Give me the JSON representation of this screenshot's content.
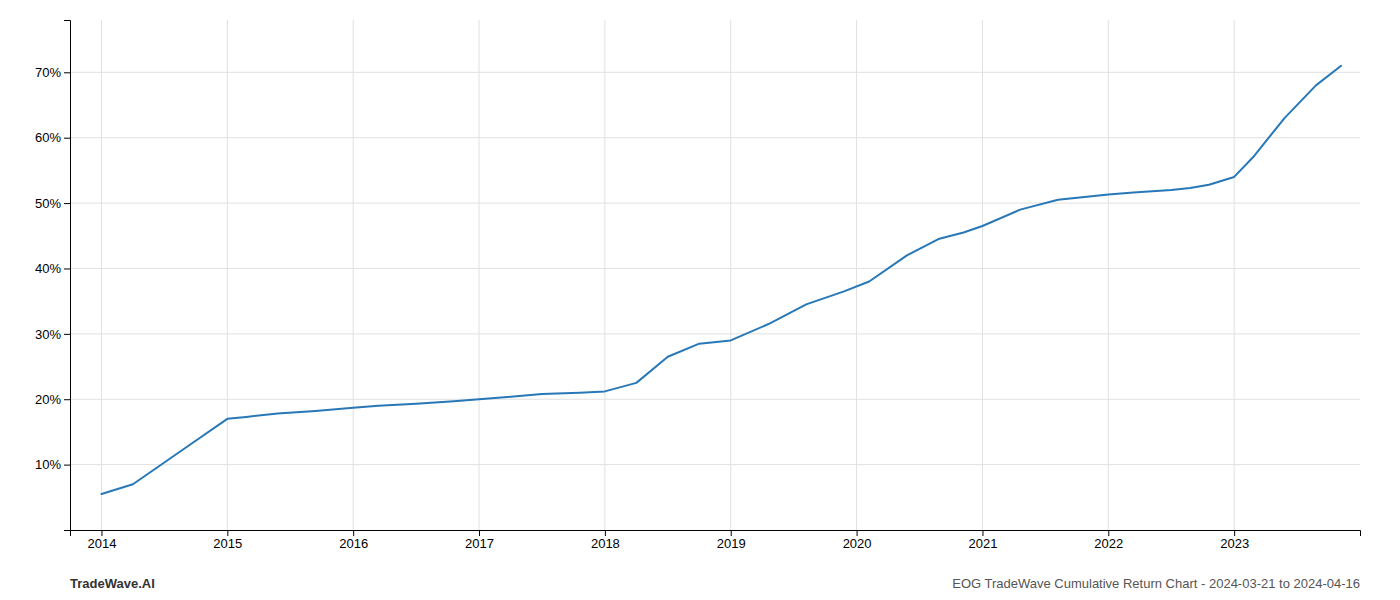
{
  "chart_data": {
    "type": "line",
    "x": [
      2014.0,
      2014.25,
      2014.7,
      2015.0,
      2015.15,
      2015.4,
      2015.7,
      2016.0,
      2016.2,
      2016.5,
      2016.8,
      2017.0,
      2017.2,
      2017.5,
      2017.8,
      2018.0,
      2018.25,
      2018.5,
      2018.75,
      2019.0,
      2019.3,
      2019.6,
      2019.9,
      2020.1,
      2020.4,
      2020.65,
      2020.85,
      2021.0,
      2021.3,
      2021.6,
      2021.85,
      2022.0,
      2022.2,
      2022.5,
      2022.65,
      2022.8,
      2023.0,
      2023.15,
      2023.4,
      2023.65,
      2023.85
    ],
    "values": [
      5.5,
      7.0,
      13.0,
      17.0,
      17.3,
      17.8,
      18.2,
      18.7,
      19.0,
      19.3,
      19.7,
      20.0,
      20.3,
      20.8,
      21.0,
      21.2,
      22.5,
      26.5,
      28.5,
      29.0,
      31.5,
      34.5,
      36.5,
      38.0,
      42.0,
      44.5,
      45.5,
      46.5,
      49.0,
      50.5,
      51.0,
      51.3,
      51.6,
      52.0,
      52.3,
      52.8,
      54.0,
      57.0,
      63.0,
      68.0,
      71.0
    ],
    "color": "#2878b8",
    "xlim": [
      2013.75,
      2024.0
    ],
    "ylim": [
      0,
      78
    ],
    "xticks": [
      2014,
      2015,
      2016,
      2017,
      2018,
      2019,
      2020,
      2021,
      2022,
      2023
    ],
    "yticks": [
      {
        "value": 10,
        "label": "10%"
      },
      {
        "value": 20,
        "label": "20%"
      },
      {
        "value": 30,
        "label": "30%"
      },
      {
        "value": 40,
        "label": "40%"
      },
      {
        "value": 50,
        "label": "50%"
      },
      {
        "value": 60,
        "label": "60%"
      },
      {
        "value": 70,
        "label": "70%"
      }
    ],
    "grid": true,
    "annotations": [
      "TradeWave.AI",
      "EOG TradeWave Cumulative Return Chart - 2024-03-21 to 2024-04-16"
    ]
  }
}
